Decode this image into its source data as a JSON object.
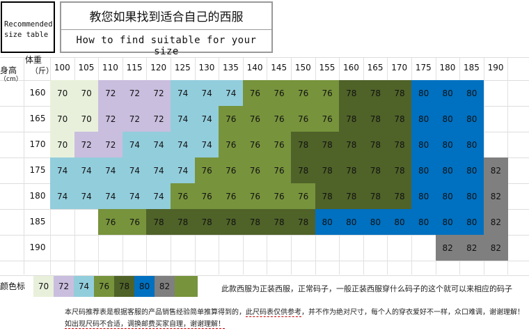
{
  "header": {
    "recommended_line1": "Recommended",
    "recommended_line2": "size table",
    "title_cn": "教您如果找到适合自己的西服",
    "title_en": "How to find suitable for your size"
  },
  "axis": {
    "weight_label": "体重",
    "weight_unit": "（斤）",
    "height_label": "身高",
    "height_unit": "（cm）"
  },
  "weights": [
    "100",
    "105",
    "110",
    "115",
    "120",
    "125",
    "130",
    "135",
    "140",
    "145",
    "150",
    "155",
    "160",
    "165",
    "170",
    "175",
    "180",
    "185",
    "190"
  ],
  "heights": [
    "160",
    "165",
    "170",
    "175",
    "180",
    "185",
    "190"
  ],
  "colors": {
    "70": "#e8f0db",
    "72": "#c9bede",
    "74": "#92cddc",
    "76": "#77933c",
    "78": "#4f6228",
    "80": "#0070c0",
    "82": "#7f7f7f"
  },
  "grid": [
    [
      "70",
      "70",
      "72",
      "72",
      "72",
      "74",
      "74",
      "74",
      "76",
      "76",
      "76",
      "76",
      "78",
      "78",
      "78",
      "80",
      "80",
      "80",
      ""
    ],
    [
      "70",
      "70",
      "72",
      "72",
      "72",
      "74",
      "74",
      "76",
      "76",
      "76",
      "76",
      "76",
      "78",
      "78",
      "78",
      "80",
      "80",
      "80",
      ""
    ],
    [
      "70",
      "72",
      "72",
      "74",
      "74",
      "74",
      "74",
      "76",
      "76",
      "76",
      "78",
      "78",
      "78",
      "78",
      "78",
      "80",
      "80",
      "80",
      ""
    ],
    [
      "74",
      "74",
      "74",
      "74",
      "74",
      "74",
      "76",
      "76",
      "76",
      "76",
      "78",
      "78",
      "78",
      "78",
      "78",
      "80",
      "80",
      "80",
      "82"
    ],
    [
      "74",
      "74",
      "74",
      "74",
      "74",
      "76",
      "76",
      "76",
      "76",
      "76",
      "76",
      "78",
      "78",
      "78",
      "78",
      "80",
      "80",
      "80",
      "82"
    ],
    [
      "",
      "",
      "76",
      "76",
      "78",
      "78",
      "78",
      "78",
      "78",
      "78",
      "78",
      "80",
      "80",
      "80",
      "80",
      "80",
      "80",
      "80",
      "82"
    ],
    [
      "",
      "",
      "",
      "",
      "",
      "",
      "",
      "",
      "",
      "",
      "",
      "",
      "",
      "",
      "",
      "",
      "82",
      "82",
      "82"
    ]
  ],
  "color_legend": {
    "label": "颜色标",
    "sizes": [
      "70",
      "72",
      "74",
      "76",
      "78",
      "80",
      "82"
    ],
    "note": "此款西服为正装西服，正常码子，一般正装西服穿什么码子的这个就可以来相应的码子"
  },
  "footer": {
    "line1_a": "本尺码推荐表是根据客服的产品销售经验简单推算得到的，",
    "line1_b": "此尺码表仅供参考",
    "line1_c": "，并不作为绝对尺寸，每个人的穿衣爱好不一样，众口难调，谢谢理解！",
    "line2": "如出现尺码不合适，调换邮费买家自理，谢谢理解！"
  }
}
